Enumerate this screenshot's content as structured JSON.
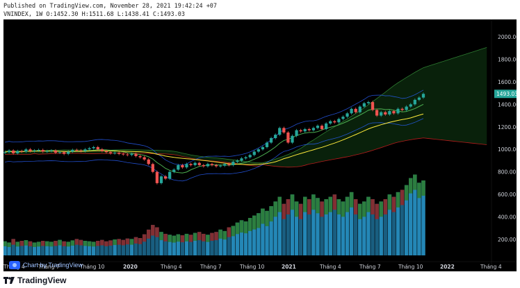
{
  "header": {
    "published": "Published on TradingView.com, November 28, 2021 19:42:24 +07",
    "symbol_line": "VNINDEX, 1W O:1452.30 H:1511.68 L:1438.41 C:1493.03"
  },
  "chart_data": {
    "type": "candlestick",
    "symbol": "VNINDEX",
    "interval": "1W",
    "ohlc": {
      "open": 1452.3,
      "high": 1511.68,
      "low": 1438.41,
      "close": 1493.03
    },
    "last_price_label": "1493.03",
    "y_ticks": [
      "2000.00",
      "1800.00",
      "1600.00",
      "1400.00",
      "1200.00",
      "1000.00",
      "800.00",
      "600.00",
      "400.00",
      "200.00"
    ],
    "y_tick_values": [
      2000,
      1800,
      1600,
      1400,
      1200,
      1000,
      800,
      600,
      400,
      200
    ],
    "x_ticks": [
      "Tháng 4",
      "Tháng 7",
      "Tháng 10",
      "2020",
      "Tháng 4",
      "Tháng 7",
      "Tháng 10",
      "2021",
      "Tháng 4",
      "Tháng 7",
      "Tháng 10",
      "2022",
      "Tháng 4"
    ],
    "x_tick_bold": [
      false,
      false,
      false,
      true,
      false,
      false,
      false,
      true,
      false,
      false,
      false,
      true,
      false
    ],
    "price_path": [
      [
        970,
        975
      ],
      [
        975,
        990
      ],
      [
        990,
        965
      ],
      [
        965,
        985
      ],
      [
        985,
        980
      ],
      [
        980,
        1000
      ],
      [
        1000,
        985
      ],
      [
        985,
        990
      ],
      [
        990,
        995
      ],
      [
        995,
        980
      ],
      [
        980,
        985
      ],
      [
        985,
        990
      ],
      [
        990,
        970
      ],
      [
        970,
        975
      ],
      [
        975,
        960
      ],
      [
        960,
        980
      ],
      [
        980,
        995
      ],
      [
        995,
        990
      ],
      [
        990,
        985
      ],
      [
        985,
        1000
      ],
      [
        1000,
        1010
      ],
      [
        1010,
        1020
      ],
      [
        1020,
        1000
      ],
      [
        1000,
        985
      ],
      [
        985,
        975
      ],
      [
        975,
        965
      ],
      [
        965,
        970
      ],
      [
        970,
        960
      ],
      [
        960,
        955
      ],
      [
        955,
        950
      ],
      [
        950,
        960
      ],
      [
        960,
        940
      ],
      [
        940,
        930
      ],
      [
        930,
        910
      ],
      [
        910,
        870
      ],
      [
        870,
        800
      ],
      [
        800,
        700
      ],
      [
        700,
        760
      ],
      [
        760,
        740
      ],
      [
        740,
        800
      ],
      [
        800,
        820
      ],
      [
        820,
        860
      ],
      [
        860,
        840
      ],
      [
        840,
        870
      ],
      [
        870,
        860
      ],
      [
        860,
        880
      ],
      [
        880,
        860
      ],
      [
        860,
        850
      ],
      [
        850,
        870
      ],
      [
        870,
        860
      ],
      [
        860,
        850
      ],
      [
        850,
        855
      ],
      [
        855,
        870
      ],
      [
        870,
        860
      ],
      [
        860,
        890
      ],
      [
        890,
        900
      ],
      [
        900,
        920
      ],
      [
        920,
        930
      ],
      [
        930,
        950
      ],
      [
        950,
        980
      ],
      [
        980,
        1000
      ],
      [
        1000,
        1020
      ],
      [
        1020,
        1060
      ],
      [
        1060,
        1100
      ],
      [
        1100,
        1130
      ],
      [
        1130,
        1190
      ],
      [
        1190,
        1150
      ],
      [
        1150,
        1060
      ],
      [
        1060,
        1120
      ],
      [
        1120,
        1170
      ],
      [
        1170,
        1160
      ],
      [
        1160,
        1180
      ],
      [
        1180,
        1170
      ],
      [
        1170,
        1190
      ],
      [
        1190,
        1210
      ],
      [
        1210,
        1180
      ],
      [
        1180,
        1230
      ],
      [
        1230,
        1250
      ],
      [
        1250,
        1240
      ],
      [
        1240,
        1270
      ],
      [
        1270,
        1290
      ],
      [
        1290,
        1320
      ],
      [
        1320,
        1360
      ],
      [
        1360,
        1330
      ],
      [
        1330,
        1380
      ],
      [
        1380,
        1410
      ],
      [
        1410,
        1420
      ],
      [
        1420,
        1350
      ],
      [
        1350,
        1300
      ],
      [
        1300,
        1330
      ],
      [
        1330,
        1310
      ],
      [
        1310,
        1340
      ],
      [
        1340,
        1320
      ],
      [
        1320,
        1360
      ],
      [
        1360,
        1350
      ],
      [
        1350,
        1380
      ],
      [
        1380,
        1400
      ],
      [
        1400,
        1440
      ],
      [
        1440,
        1460
      ],
      [
        1460,
        1493
      ]
    ],
    "volume": [
      60,
      55,
      70,
      58,
      62,
      65,
      60,
      55,
      58,
      62,
      60,
      58,
      62,
      66,
      60,
      58,
      64,
      70,
      66,
      62,
      60,
      58,
      62,
      66,
      60,
      64,
      68,
      70,
      66,
      72,
      70,
      78,
      74,
      90,
      110,
      130,
      120,
      100,
      92,
      88,
      84,
      90,
      86,
      92,
      88,
      96,
      100,
      92,
      88,
      96,
      100,
      110,
      104,
      120,
      126,
      140,
      150,
      145,
      160,
      170,
      180,
      200,
      190,
      210,
      230,
      250,
      220,
      240,
      260,
      230,
      220,
      250,
      240,
      260,
      245,
      230,
      240,
      250,
      260,
      240,
      230,
      250,
      270,
      240,
      220,
      230,
      250,
      240,
      220,
      230,
      240,
      260,
      250,
      270,
      280,
      300,
      330,
      345,
      310,
      320
    ],
    "volume_axis_max": 480,
    "sma_fast": [],
    "colors": {
      "up": "#26a69a",
      "down": "#ef5350",
      "ma_fast": "#4caf50",
      "ma_slow": "#ffeb3b",
      "band": "#2962ff",
      "cloud_up": "#1b5e20",
      "cloud_line": "#b71c1c",
      "last_price_bg": "#26a69a",
      "volume": "#2a9fd6"
    },
    "grid": false
  },
  "watermark": {
    "text": "Chart by TradingView",
    "icon": "tradingview-logo-icon"
  },
  "footer": {
    "brand": "TradingView",
    "icon": "tradingview-logo-icon"
  }
}
